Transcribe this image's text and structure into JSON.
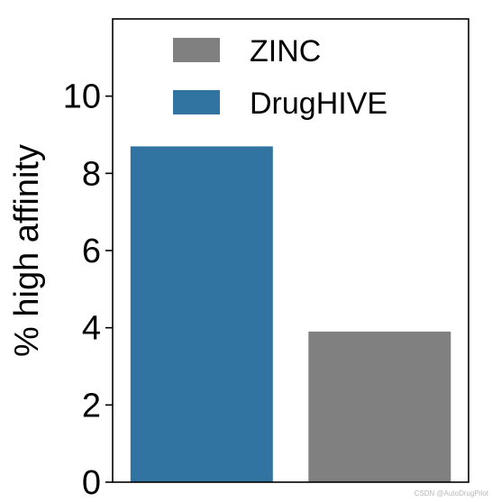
{
  "chart_data": {
    "type": "bar",
    "categories": [
      "DrugHIVE",
      "ZINC"
    ],
    "values": [
      8.7,
      3.9
    ],
    "colors": [
      "#3274a1",
      "#808080"
    ],
    "xlabel": "",
    "ylabel": "% high affinity",
    "ylim": [
      0,
      12
    ],
    "yticks": [
      0,
      2,
      4,
      6,
      8,
      10
    ],
    "grid": false,
    "legend": {
      "placement": "top-right",
      "entries": [
        {
          "label": "ZINC",
          "color": "#808080"
        },
        {
          "label": "DrugHIVE",
          "color": "#3274a1"
        }
      ]
    }
  },
  "watermark": "CSDN @AutoDrugPilot"
}
